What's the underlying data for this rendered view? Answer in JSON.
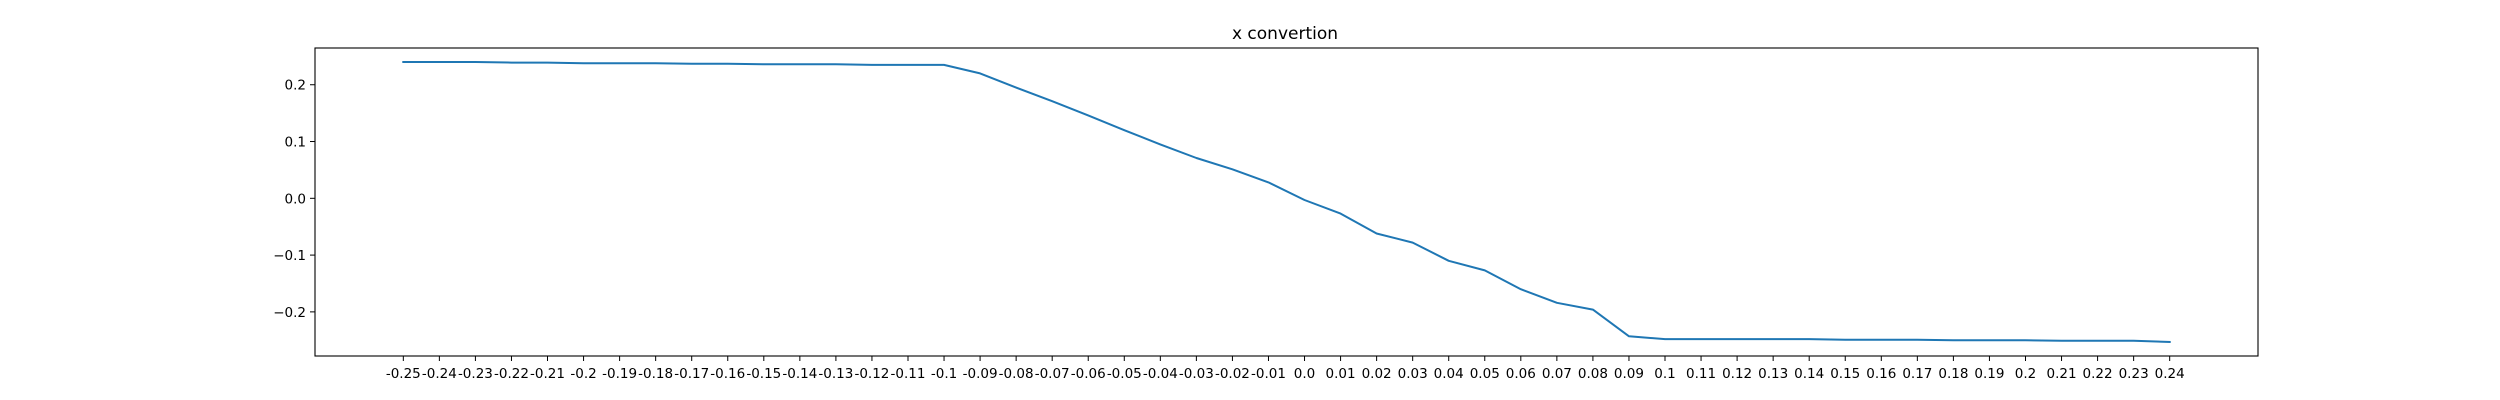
{
  "chart_data": {
    "type": "line",
    "title": "x convertion",
    "xlabel": "",
    "ylabel": "",
    "x": [
      -0.25,
      -0.24,
      -0.23,
      -0.22,
      -0.21,
      -0.2,
      -0.19,
      -0.18,
      -0.17,
      -0.16,
      -0.15,
      -0.14,
      -0.13,
      -0.12,
      -0.11,
      -0.1,
      -0.09,
      -0.08,
      -0.07,
      -0.06,
      -0.05,
      -0.04,
      -0.03,
      -0.02,
      -0.01,
      0.0,
      0.01,
      0.02,
      0.03,
      0.04,
      0.05,
      0.06,
      0.07,
      0.08,
      0.09,
      0.1,
      0.11,
      0.12,
      0.13,
      0.14,
      0.15,
      0.16,
      0.17,
      0.18,
      0.19,
      0.2,
      0.21,
      0.22,
      0.23,
      0.24
    ],
    "x_tick_labels": [
      "-0.25",
      "-0.24",
      "-0.23",
      "-0.22",
      "-0.21",
      "-0.2",
      "-0.19",
      "-0.18",
      "-0.17",
      "-0.16",
      "-0.15",
      "-0.14",
      "-0.13",
      "-0.12",
      "-0.11",
      "-0.1",
      "-0.09",
      "-0.08",
      "-0.07",
      "-0.06",
      "-0.05",
      "-0.04",
      "-0.03",
      "-0.02",
      "-0.01",
      "0.0",
      "0.01",
      "0.02",
      "0.03",
      "0.04",
      "0.05",
      "0.06",
      "0.07",
      "0.08",
      "0.09",
      "0.1",
      "0.11",
      "0.12",
      "0.13",
      "0.14",
      "0.15",
      "0.16",
      "0.17",
      "0.18",
      "0.19",
      "0.2",
      "0.21",
      "0.22",
      "0.23",
      "0.24"
    ],
    "series": [
      {
        "color": "#1f77b4",
        "values": [
          0.24,
          0.24,
          0.24,
          0.239,
          0.239,
          0.238,
          0.238,
          0.238,
          0.237,
          0.237,
          0.236,
          0.236,
          0.236,
          0.235,
          0.235,
          0.235,
          0.22,
          0.195,
          0.171,
          0.146,
          0.12,
          0.095,
          0.071,
          0.051,
          0.028,
          -0.003,
          -0.027,
          -0.062,
          -0.078,
          -0.11,
          -0.127,
          -0.16,
          -0.184,
          -0.196,
          -0.243,
          -0.248,
          -0.248,
          -0.248,
          -0.248,
          -0.248,
          -0.249,
          -0.249,
          -0.249,
          -0.25,
          -0.25,
          -0.25,
          -0.251,
          -0.251,
          -0.251,
          -0.253
        ]
      }
    ],
    "y_ticks": [
      -0.2,
      -0.1,
      0.0,
      0.1,
      0.2
    ],
    "y_tick_labels": [
      "−0.2",
      "−0.1",
      "0.0",
      "0.1",
      "0.2"
    ],
    "xlim": [
      -0.2745,
      0.2645
    ],
    "ylim": [
      -0.2777,
      0.2647
    ],
    "grid": false
  }
}
